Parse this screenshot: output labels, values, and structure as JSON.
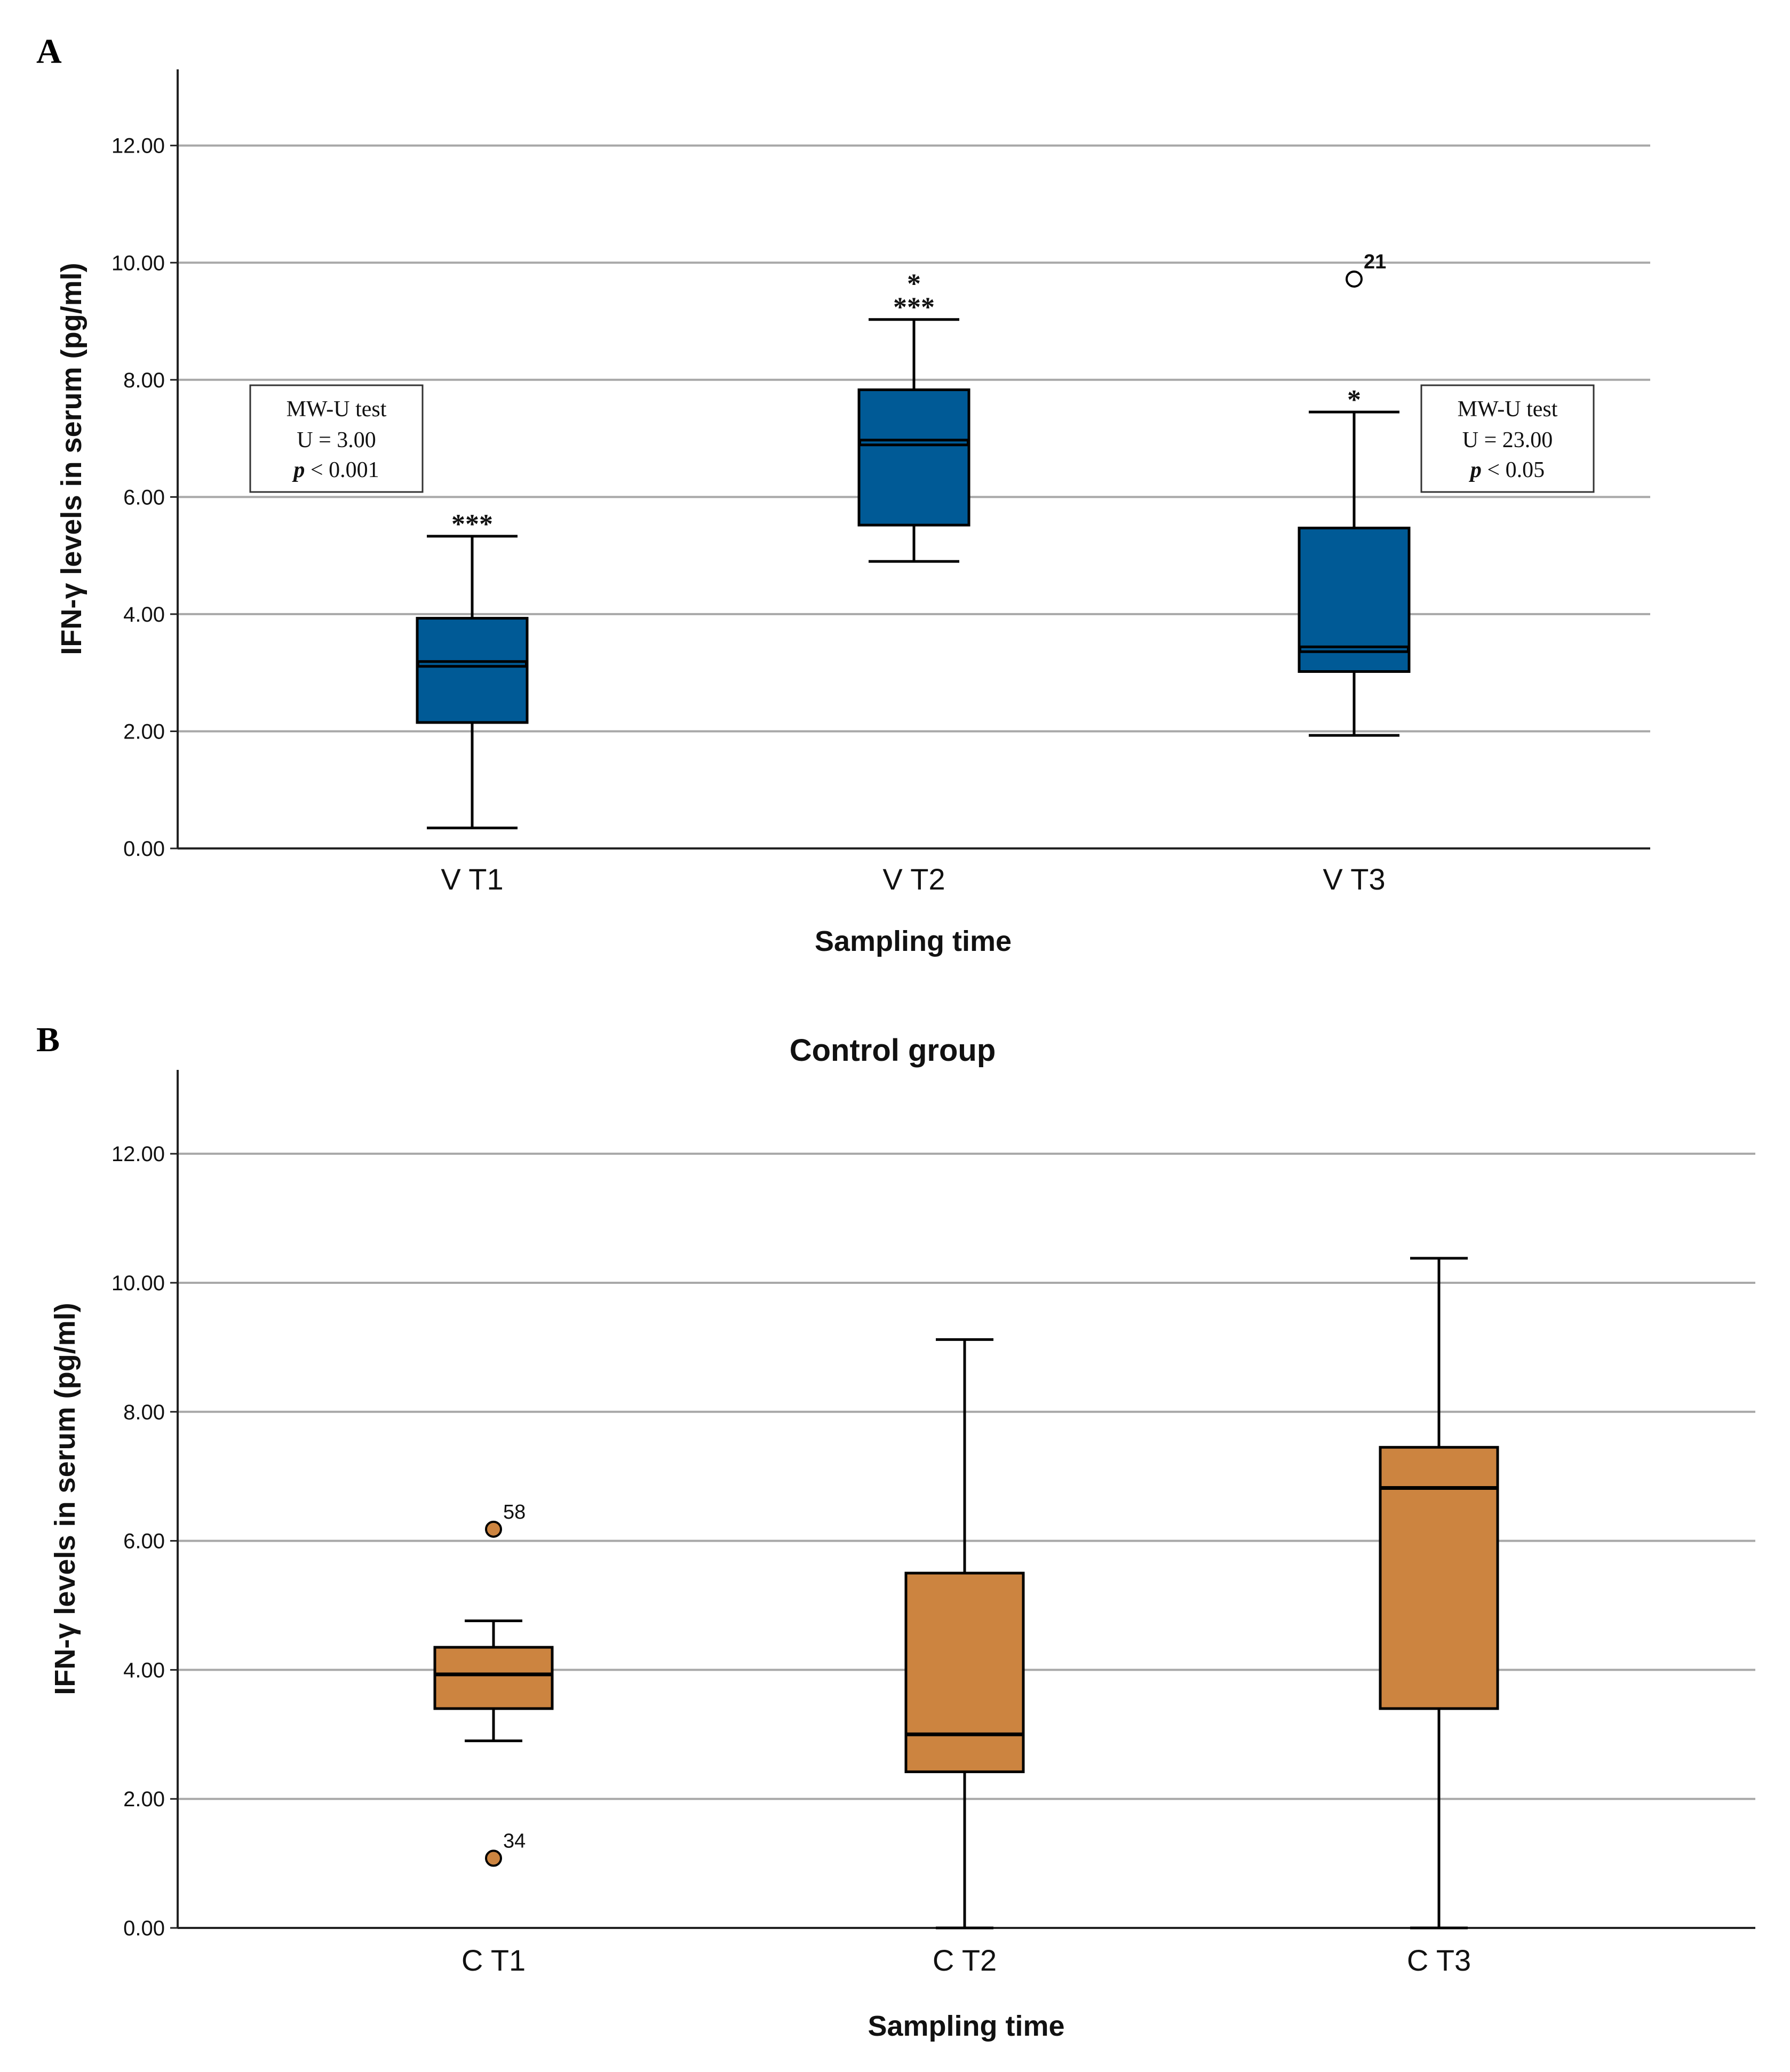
{
  "panels": [
    {
      "letter": "A",
      "title": ""
    },
    {
      "letter": "B",
      "title": "Control group"
    }
  ],
  "chart_data": [
    {
      "type": "box",
      "panel": "A",
      "title": "",
      "xlabel": "Sampling time",
      "ylabel": "IFN-γ levels in serum (pg/ml)",
      "ylim": [
        0,
        13.3
      ],
      "yticks": [
        "0.00",
        "2.00",
        "4.00",
        "6.00",
        "8.00",
        "10.00",
        "12.00"
      ],
      "grid": true,
      "box_color": "#005a96",
      "box_stroke": "#000000",
      "categories": [
        "V T1",
        "V T2",
        "V T3"
      ],
      "boxes": [
        {
          "label": "V T1",
          "min": 0.35,
          "q1": 2.15,
          "median": 3.15,
          "q3": 3.93,
          "max": 5.33,
          "outliers": [],
          "annotation": [
            "***"
          ]
        },
        {
          "label": "V T2",
          "min": 4.9,
          "q1": 5.52,
          "median": 6.93,
          "q3": 7.83,
          "max": 9.03,
          "outliers": [],
          "annotation": [
            "*",
            "***"
          ]
        },
        {
          "label": "V T3",
          "min": 1.93,
          "q1": 3.02,
          "median": 3.4,
          "q3": 5.47,
          "max": 7.45,
          "outliers": [
            {
              "value": 9.72,
              "label": "21"
            }
          ],
          "annotation": [
            "*"
          ]
        }
      ],
      "stat_boxes": [
        {
          "test": "MW-U test",
          "u": "U = 3.00",
          "p_letter": "p",
          "p_rest": " < 0.001"
        },
        {
          "test": "MW-U test",
          "u": "U = 23.00",
          "p_letter": "p",
          "p_rest": " < 0.05"
        }
      ]
    },
    {
      "type": "box",
      "panel": "B",
      "title": "Control group",
      "xlabel": "Sampling time",
      "ylabel": "IFN-γ levels in serum (pg/ml)",
      "ylim": [
        0,
        13.3
      ],
      "yticks": [
        "0.00",
        "2.00",
        "4.00",
        "6.00",
        "8.00",
        "10.00",
        "12.00"
      ],
      "grid": true,
      "box_color": "#cc8440",
      "box_stroke": "#000000",
      "categories": [
        "C T1",
        "C T2",
        "C T3"
      ],
      "boxes": [
        {
          "label": "C T1",
          "min": 2.9,
          "q1": 3.4,
          "median": 3.93,
          "q3": 4.35,
          "max": 4.76,
          "outliers": [
            {
              "value": 6.18,
              "label": "58"
            },
            {
              "value": 1.08,
              "label": "34"
            }
          ],
          "annotation": []
        },
        {
          "label": "C T2",
          "min": 0.0,
          "q1": 2.42,
          "median": 3.0,
          "q3": 5.5,
          "max": 9.12,
          "outliers": [],
          "annotation": []
        },
        {
          "label": "C T3",
          "min": 0.0,
          "q1": 3.4,
          "median": 6.82,
          "q3": 7.45,
          "max": 10.38,
          "outliers": [],
          "annotation": []
        }
      ]
    }
  ]
}
